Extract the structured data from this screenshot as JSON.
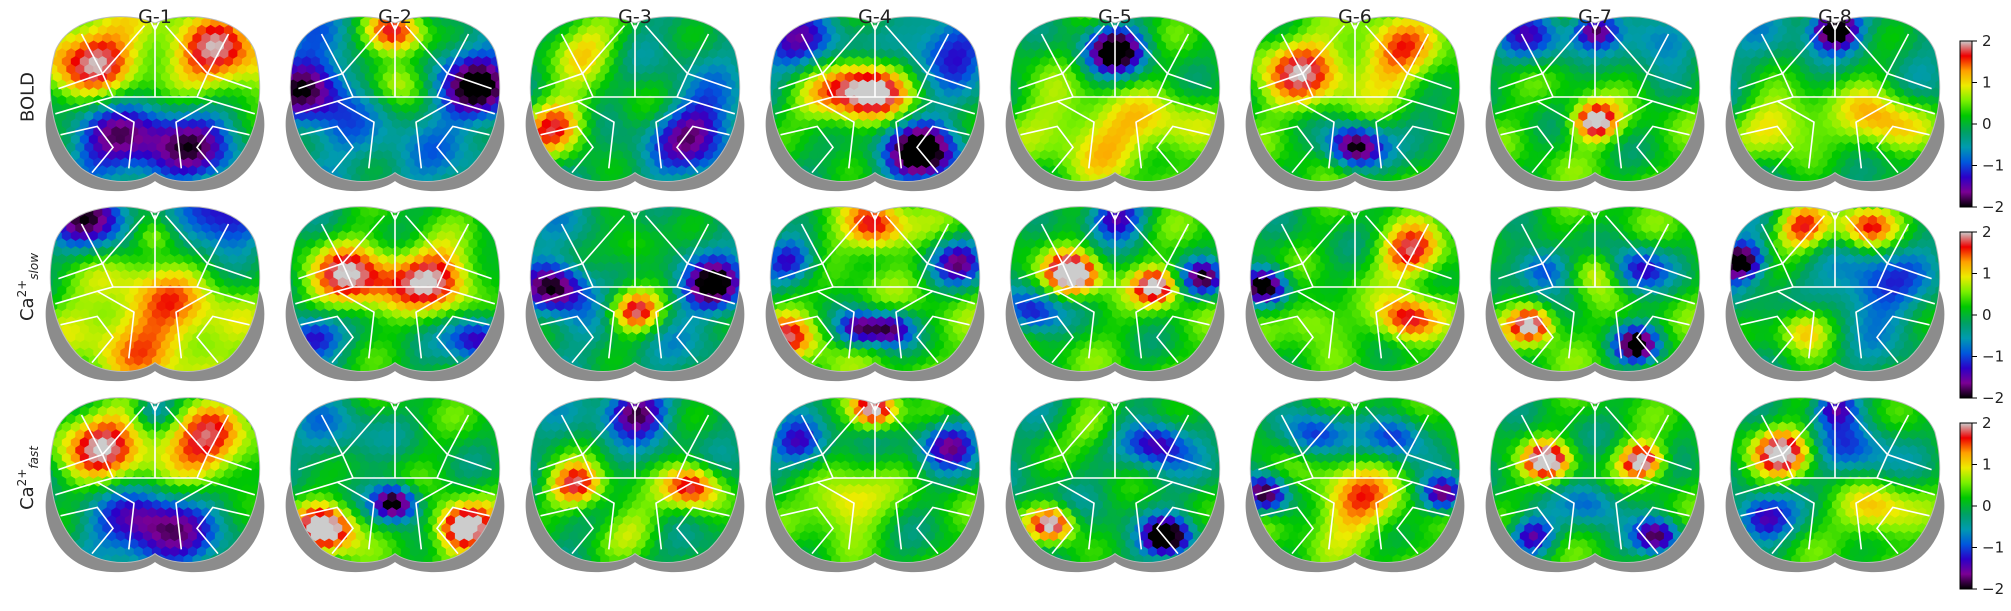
{
  "chart_data": {
    "type": "heatmap",
    "columns": [
      "G-1",
      "G-2",
      "G-3",
      "G-4",
      "G-5",
      "G-6",
      "G-7",
      "G-8"
    ],
    "rows": [
      {
        "label": "BOLD",
        "base": "BOLD",
        "sup": "",
        "sub": ""
      },
      {
        "label": "Ca2+ slow",
        "base": "Ca",
        "sup": "2+",
        "sub": "slow"
      },
      {
        "label": "Ca2+ fast",
        "base": "Ca",
        "sup": "2+",
        "sub": "fast"
      }
    ],
    "colorbar": {
      "range": [
        -2,
        2
      ],
      "ticks": [
        "2",
        "1",
        "0",
        "−1",
        "−2"
      ],
      "colormap": "nipy_spectral"
    },
    "maps": [
      [
        {
          "base": 0.3,
          "blobs": [
            [
              -0.6,
              -0.45,
              0.35,
              1.5
            ],
            [
              0.6,
              -0.45,
              0.35,
              1.5
            ],
            [
              -0.4,
              0.55,
              0.4,
              -1.6
            ],
            [
              0.4,
              0.55,
              0.4,
              -1.6
            ]
          ]
        },
        {
          "base": -0.5,
          "blobs": [
            [
              0,
              -0.75,
              0.22,
              2.3
            ],
            [
              0,
              -0.2,
              0.2,
              1.2
            ],
            [
              -0.8,
              -0.1,
              0.25,
              -1.5
            ],
            [
              0.8,
              -0.1,
              0.25,
              -1.5
            ]
          ]
        },
        {
          "base": -0.3,
          "blobs": [
            [
              -0.75,
              0.35,
              0.25,
              1.9
            ],
            [
              -0.5,
              -0.6,
              0.3,
              1.3
            ],
            [
              0.55,
              0.4,
              0.3,
              -1.5
            ],
            [
              0.2,
              0.2,
              0.3,
              0.5
            ]
          ]
        },
        {
          "base": -0.1,
          "blobs": [
            [
              0,
              -0.1,
              0.25,
              1.8
            ],
            [
              -0.4,
              0,
              0.3,
              1.3
            ],
            [
              0.45,
              0.65,
              0.25,
              -2.2
            ],
            [
              -0.7,
              -0.6,
              0.3,
              -1.2
            ],
            [
              0.7,
              -0.6,
              0.3,
              -1.2
            ]
          ]
        },
        {
          "base": 0.1,
          "blobs": [
            [
              0,
              -0.55,
              0.2,
              -2.3
            ],
            [
              0,
              0.6,
              0.3,
              0.8
            ],
            [
              -0.5,
              0.3,
              0.3,
              0.7
            ],
            [
              0.5,
              0.3,
              0.3,
              0.7
            ]
          ]
        },
        {
          "base": 0.2,
          "blobs": [
            [
              0,
              0.6,
              0.18,
              -2.3
            ],
            [
              -0.5,
              -0.3,
              0.3,
              1.4
            ],
            [
              0.4,
              -0.5,
              0.3,
              1.2
            ],
            [
              0.8,
              0.4,
              0.25,
              -0.6
            ]
          ]
        },
        {
          "base": 0.2,
          "blobs": [
            [
              0,
              0.3,
              0.15,
              2
            ],
            [
              0,
              -0.8,
              0.15,
              -1.8
            ],
            [
              -0.6,
              -0.7,
              0.25,
              -1.3
            ],
            [
              0.6,
              -0.7,
              0.25,
              -1.3
            ]
          ]
        },
        {
          "base": -0.3,
          "blobs": [
            [
              0,
              -0.8,
              0.15,
              -2.2
            ],
            [
              -0.5,
              0.35,
              0.3,
              1.5
            ],
            [
              0.5,
              0.35,
              0.3,
              1.5
            ],
            [
              0.2,
              -0.2,
              0.3,
              0.4
            ]
          ]
        }
      ],
      [
        {
          "base": 0,
          "blobs": [
            [
              -0.6,
              -0.8,
              0.3,
              -1.7
            ],
            [
              0.6,
              -0.8,
              0.3,
              -1.7
            ],
            [
              0,
              0.45,
              0.6,
              1.4
            ],
            [
              0,
              -0.6,
              0.15,
              1.0
            ]
          ]
        },
        {
          "base": 0,
          "blobs": [
            [
              -0.4,
              -0.1,
              0.3,
              1.8
            ],
            [
              0.4,
              -0.1,
              0.3,
              1.8
            ],
            [
              -0.8,
              0.6,
              0.2,
              -1.6
            ],
            [
              0.8,
              0.6,
              0.2,
              -1.6
            ]
          ]
        },
        {
          "base": -0.3,
          "blobs": [
            [
              0,
              0.3,
              0.18,
              2.0
            ],
            [
              -0.75,
              0,
              0.2,
              -1.8
            ],
            [
              0.75,
              0,
              0.2,
              -1.8
            ],
            [
              0,
              -0.5,
              0.2,
              1.0
            ]
          ]
        },
        {
          "base": 0.3,
          "blobs": [
            [
              0,
              -0.7,
              0.2,
              1.6
            ],
            [
              -0.8,
              -0.3,
              0.2,
              -1.7
            ],
            [
              0.8,
              -0.3,
              0.2,
              -1.7
            ],
            [
              -0.15,
              0.5,
              0.15,
              -1.8
            ],
            [
              0.15,
              0.5,
              0.15,
              -1.8
            ],
            [
              -0.8,
              0.6,
              0.2,
              1.2
            ]
          ]
        },
        {
          "base": 0.2,
          "blobs": [
            [
              -0.4,
              -0.15,
              0.17,
              2.3
            ],
            [
              0.4,
              0,
              0.15,
              1.9
            ],
            [
              0.85,
              -0.1,
              0.15,
              -1.9
            ],
            [
              -0.8,
              0.3,
              0.2,
              -1.5
            ],
            [
              0,
              -0.85,
              0.2,
              -1.7
            ]
          ]
        },
        {
          "base": 0.1,
          "blobs": [
            [
              -0.85,
              0,
              0.15,
              -2.3
            ],
            [
              0.55,
              -0.4,
              0.22,
              1.7
            ],
            [
              0.5,
              0.4,
              0.2,
              1.8
            ],
            [
              -0.4,
              0.4,
              0.2,
              0.9
            ]
          ]
        },
        {
          "base": 0.2,
          "blobs": [
            [
              -0.6,
              0.45,
              0.15,
              2.1
            ],
            [
              0.4,
              0.7,
              0.15,
              -2.2
            ],
            [
              -0.5,
              -0.2,
              0.2,
              -1.6
            ],
            [
              0.4,
              -0.2,
              0.2,
              -1.6
            ],
            [
              0,
              -0.2,
              0.18,
              0.9
            ]
          ]
        },
        {
          "base": -0.2,
          "blobs": [
            [
              -0.9,
              -0.3,
              0.15,
              -2.2
            ],
            [
              -0.3,
              -0.7,
              0.2,
              1.8
            ],
            [
              0.3,
              -0.7,
              0.2,
              1.8
            ],
            [
              -0.3,
              0.5,
              0.2,
              1.5
            ],
            [
              0.35,
              0,
              0.3,
              -1.0
            ]
          ]
        }
      ],
      [
        {
          "base": -0.2,
          "blobs": [
            [
              -0.5,
              -0.4,
              0.35,
              1.9
            ],
            [
              0.5,
              -0.4,
              0.35,
              1.9
            ],
            [
              0,
              0.6,
              0.35,
              -1.6
            ],
            [
              0,
              -0.8,
              0.15,
              -1.0
            ]
          ]
        },
        {
          "base": 0.1,
          "blobs": [
            [
              0,
              0.3,
              0.15,
              -2.4
            ],
            [
              -0.65,
              0.6,
              0.2,
              2.3
            ],
            [
              0.65,
              0.6,
              0.2,
              2.3
            ],
            [
              -0.6,
              -0.5,
              0.3,
              -0.8
            ]
          ]
        },
        {
          "base": -0.2,
          "blobs": [
            [
              -0.55,
              0.1,
              0.2,
              2.0
            ],
            [
              0.55,
              0.1,
              0.2,
              2.0
            ],
            [
              0,
              -0.8,
              0.2,
              -1.6
            ],
            [
              0,
              0.6,
              0.25,
              0.9
            ]
          ]
        },
        {
          "base": 0.1,
          "blobs": [
            [
              0,
              -0.8,
              0.15,
              2.0
            ],
            [
              -0.7,
              -0.4,
              0.2,
              -1.6
            ],
            [
              0.7,
              -0.4,
              0.2,
              -1.6
            ],
            [
              -0.3,
              0.3,
              0.25,
              1.2
            ]
          ]
        },
        {
          "base": -0.1,
          "blobs": [
            [
              -0.6,
              0.55,
              0.15,
              2.3
            ],
            [
              0.5,
              0.7,
              0.15,
              -2.3
            ],
            [
              0.4,
              -0.4,
              0.2,
              -1.4
            ],
            [
              -0.2,
              -0.6,
              0.2,
              0.8
            ]
          ]
        },
        {
          "base": 0.2,
          "blobs": [
            [
              -0.85,
              0.2,
              0.15,
              -2.2
            ],
            [
              0.85,
              0.2,
              0.15,
              -2.2
            ],
            [
              -0.4,
              -0.5,
              0.2,
              -1.4
            ],
            [
              0.4,
              -0.5,
              0.2,
              -1.4
            ],
            [
              0,
              0.3,
              0.3,
              1.2
            ]
          ]
        },
        {
          "base": 0.1,
          "blobs": [
            [
              -0.45,
              -0.2,
              0.15,
              2.1
            ],
            [
              0.45,
              -0.2,
              0.15,
              2.1
            ],
            [
              -0.6,
              0.7,
              0.15,
              -1.6
            ],
            [
              0.6,
              0.7,
              0.15,
              -1.8
            ],
            [
              0,
              0.3,
              0.2,
              -1.0
            ]
          ]
        },
        {
          "base": 0.1,
          "blobs": [
            [
              -0.5,
              -0.3,
              0.2,
              1.9
            ],
            [
              -0.7,
              0.5,
              0.2,
              -1.6
            ],
            [
              0.2,
              -0.3,
              0.3,
              -1.0
            ],
            [
              0.4,
              0.4,
              0.25,
              1.2
            ],
            [
              0,
              -0.85,
              0.15,
              -1.5
            ]
          ]
        }
      ]
    ]
  }
}
